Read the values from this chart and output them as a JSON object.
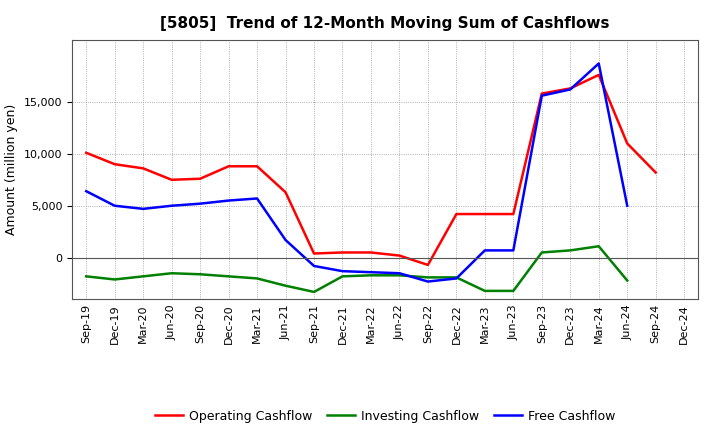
{
  "title": "[5805]  Trend of 12-Month Moving Sum of Cashflows",
  "ylabel": "Amount (million yen)",
  "x_labels": [
    "Sep-19",
    "Dec-19",
    "Mar-20",
    "Jun-20",
    "Sep-20",
    "Dec-20",
    "Mar-21",
    "Jun-21",
    "Sep-21",
    "Dec-21",
    "Mar-22",
    "Jun-22",
    "Sep-22",
    "Dec-22",
    "Mar-23",
    "Jun-23",
    "Sep-23",
    "Dec-23",
    "Mar-24",
    "Jun-24",
    "Sep-24",
    "Dec-24"
  ],
  "operating_cashflow": [
    10100,
    9000,
    8600,
    7500,
    7600,
    8800,
    8800,
    6300,
    400,
    500,
    500,
    200,
    -700,
    4200,
    4200,
    4200,
    15800,
    16300,
    17600,
    11000,
    8200,
    null
  ],
  "investing_cashflow": [
    -1800,
    -2100,
    -1800,
    -1500,
    -1600,
    -1800,
    -2000,
    -2700,
    -3300,
    -1800,
    -1700,
    -1700,
    -1900,
    -1900,
    -3200,
    -3200,
    500,
    700,
    1100,
    -2200,
    null,
    null
  ],
  "free_cashflow": [
    6400,
    5000,
    4700,
    5000,
    5200,
    5500,
    5700,
    1700,
    -800,
    -1300,
    -1400,
    -1500,
    -2300,
    -2000,
    700,
    700,
    15600,
    16200,
    18700,
    5000,
    null,
    null
  ],
  "operating_color": "#FF0000",
  "investing_color": "#008000",
  "free_color": "#0000FF",
  "ylim_min": -4000,
  "ylim_max": 21000,
  "yticks": [
    0,
    5000,
    10000,
    15000
  ],
  "background_color": "#FFFFFF",
  "plot_bg_color": "#FFFFFF",
  "grid_color": "#999999",
  "line_width": 1.8,
  "title_fontsize": 11,
  "legend_fontsize": 9,
  "tick_fontsize": 8,
  "ylabel_fontsize": 9
}
